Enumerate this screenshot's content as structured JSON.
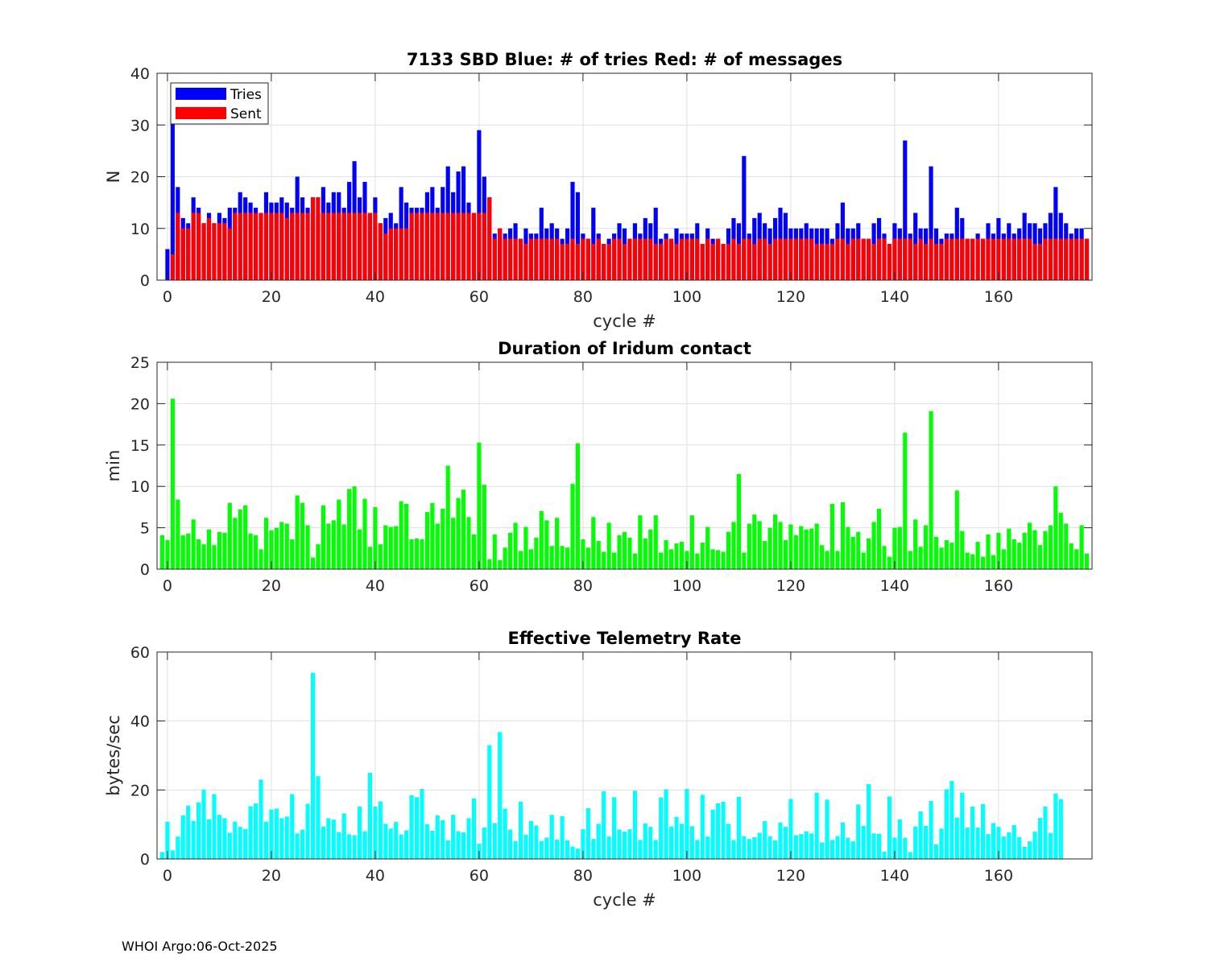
{
  "footer": "WHOI Argo:06-Oct-2025",
  "chart_data": [
    {
      "type": "bar",
      "title": "7133 SBD  Blue: # of tries   Red: # of messages",
      "xlabel": "cycle #",
      "ylabel": "N",
      "xlim": [
        -2,
        178
      ],
      "ylim": [
        0,
        40
      ],
      "xticks": [
        0,
        20,
        40,
        60,
        80,
        100,
        120,
        140,
        160
      ],
      "yticks": [
        0,
        10,
        20,
        30,
        40
      ],
      "grid": true,
      "legend": {
        "placement": "top-left",
        "entries": [
          {
            "label": "Tries",
            "color": "#0000ff"
          },
          {
            "label": "Sent",
            "color": "#ff0000"
          }
        ]
      },
      "x_start": 0,
      "series": [
        {
          "name": "Tries",
          "color": "#0000ff",
          "values": [
            6,
            32,
            18,
            12,
            11,
            16,
            14,
            11,
            13,
            11,
            13,
            12,
            14,
            14,
            17,
            16,
            15,
            14,
            13,
            17,
            15,
            15,
            16,
            15,
            14,
            20,
            16,
            14,
            16,
            16,
            18,
            15,
            17,
            17,
            14,
            19,
            23,
            16,
            19,
            13,
            16,
            11,
            12,
            13,
            11,
            18,
            15,
            14,
            14,
            14,
            17,
            18,
            14,
            18,
            22,
            17,
            21,
            22,
            15,
            13,
            29,
            20,
            16,
            9,
            10,
            9,
            10,
            11,
            8,
            10,
            9,
            9,
            14,
            10,
            11,
            10,
            8,
            10,
            19,
            17,
            9,
            8,
            14,
            9,
            7,
            8,
            9,
            11,
            10,
            8,
            11,
            9,
            12,
            11,
            14,
            8,
            9,
            8,
            10,
            9,
            9,
            9,
            11,
            7,
            10,
            8,
            8,
            7,
            10,
            12,
            11,
            24,
            9,
            12,
            13,
            11,
            10,
            12,
            14,
            13,
            10,
            10,
            10,
            11,
            10,
            10,
            10,
            10,
            8,
            11,
            15,
            10,
            10,
            11,
            8,
            8,
            11,
            12,
            9,
            7,
            11,
            10,
            27,
            9,
            13,
            10,
            10,
            22,
            10,
            8,
            9,
            9,
            14,
            12,
            8,
            8,
            9,
            8,
            11,
            9,
            12,
            9,
            11,
            9,
            10,
            13,
            11,
            11,
            10,
            11,
            13,
            18,
            13,
            11,
            9,
            10,
            10,
            8
          ]
        },
        {
          "name": "Sent",
          "color": "#ff0000",
          "values": [
            0,
            5,
            13,
            10,
            10,
            13,
            13,
            11,
            12,
            11,
            11,
            11,
            10,
            13,
            13,
            13,
            13,
            13,
            13,
            13,
            13,
            13,
            13,
            12,
            13,
            13,
            13,
            13,
            16,
            16,
            13,
            13,
            13,
            13,
            13,
            13,
            13,
            13,
            13,
            13,
            13,
            11,
            9,
            10,
            10,
            10,
            10,
            13,
            13,
            13,
            13,
            13,
            13,
            13,
            13,
            13,
            13,
            13,
            13,
            13,
            13,
            13,
            16,
            8,
            10,
            8,
            8,
            8,
            8,
            7,
            8,
            8,
            8,
            8,
            8,
            8,
            7,
            7,
            8,
            7,
            8,
            8,
            7,
            8,
            7,
            7,
            8,
            8,
            7,
            8,
            8,
            8,
            8,
            8,
            7,
            7,
            8,
            8,
            7,
            8,
            8,
            8,
            8,
            7,
            8,
            7,
            8,
            7,
            7,
            8,
            7,
            8,
            8,
            7,
            8,
            8,
            7,
            8,
            8,
            8,
            8,
            8,
            8,
            8,
            8,
            7,
            7,
            7,
            7,
            8,
            8,
            7,
            8,
            8,
            8,
            8,
            7,
            8,
            8,
            7,
            8,
            8,
            8,
            8,
            7,
            8,
            7,
            8,
            7,
            7,
            8,
            8,
            8,
            8,
            8,
            8,
            8,
            8,
            8,
            8,
            8,
            8,
            8,
            8,
            8,
            8,
            8,
            7,
            7,
            8,
            8,
            8,
            8,
            8,
            8,
            8,
            8,
            8
          ]
        }
      ]
    },
    {
      "type": "bar",
      "title": "Duration of Iridum contact",
      "xlabel": "",
      "ylabel": "min",
      "xlim": [
        -2,
        178
      ],
      "ylim": [
        0,
        25
      ],
      "xticks": [
        0,
        20,
        40,
        60,
        80,
        100,
        120,
        140,
        160
      ],
      "yticks": [
        0,
        5,
        10,
        15,
        20,
        25
      ],
      "grid": true,
      "x_start": -1,
      "series": [
        {
          "name": "Duration",
          "color": "#00ff00",
          "values": [
            4.1,
            3.5,
            20.6,
            8.4,
            4.1,
            4.3,
            6,
            3.6,
            3,
            4.8,
            2.9,
            4.5,
            4.4,
            8,
            6.2,
            7.2,
            7.7,
            4.3,
            4.1,
            2.4,
            6.2,
            4.7,
            5,
            5.7,
            5.5,
            3.6,
            8.9,
            8,
            5.3,
            1.4,
            3,
            7.7,
            5.5,
            5.9,
            8.4,
            5.4,
            9.7,
            10,
            4.8,
            8.5,
            2.7,
            7.5,
            3,
            5.3,
            5.1,
            5.2,
            8.2,
            7.9,
            3.6,
            3.7,
            3.6,
            6.9,
            8,
            5.5,
            7.3,
            12.5,
            6.2,
            8.6,
            9.6,
            6.3,
            4.2,
            15.3,
            10.2,
            1.2,
            4.2,
            1.1,
            2.6,
            4.4,
            5.6,
            2.2,
            5.1,
            2.4,
            3.8,
            7,
            5.9,
            2.8,
            6.2,
            2.8,
            2.6,
            10.3,
            15.2,
            3.6,
            2.6,
            6.3,
            3.4,
            2.1,
            5.6,
            2,
            4.1,
            4.5,
            3.8,
            1.9,
            6.5,
            3.7,
            4.8,
            6.5,
            2,
            3.5,
            2.4,
            3.1,
            3.3,
            2.2,
            6.5,
            1.9,
            3.2,
            5.1,
            2.4,
            2.3,
            2.1,
            4.5,
            5.7,
            11.5,
            2,
            5.5,
            6.6,
            5.8,
            3.4,
            5,
            6.6,
            5.7,
            3.5,
            5.4,
            4.1,
            5.2,
            4.8,
            4.9,
            5.5,
            2.9,
            2.2,
            7.9,
            2.2,
            8.1,
            5.1,
            3.9,
            4.5,
            2,
            3.7,
            5.7,
            7.3,
            2.8,
            1.5,
            5,
            5.1,
            16.5,
            2.2,
            6,
            2.7,
            5.3,
            19.1,
            3.9,
            2.6,
            3.5,
            3.2,
            9.5,
            4.6,
            2,
            1.8,
            3.3,
            1.5,
            4.2,
            1.7,
            4.4,
            2.4,
            4.9,
            3.6,
            3.2,
            4.4,
            5.6,
            4.7,
            2.9,
            4.6,
            5.3,
            10,
            6.8,
            5.5,
            3.1,
            2.4,
            5.3,
            1.9
          ]
        }
      ]
    },
    {
      "type": "bar",
      "title": "Effective Telemetry Rate",
      "xlabel": "cycle #",
      "ylabel": "bytes/sec",
      "xlim": [
        -2,
        178
      ],
      "ylim": [
        0,
        60
      ],
      "xticks": [
        0,
        20,
        40,
        60,
        80,
        100,
        120,
        140,
        160
      ],
      "yticks": [
        0,
        20,
        40,
        60
      ],
      "grid": true,
      "x_start": -1,
      "series": [
        {
          "name": "Rate",
          "color": "#00ffff",
          "values": [
            2,
            10.8,
            2.5,
            6.5,
            12.6,
            15.4,
            11,
            16.4,
            20.1,
            11.5,
            18.8,
            12.8,
            11.8,
            7.6,
            10.8,
            9.3,
            8.7,
            15.3,
            16.1,
            23,
            10.8,
            14.3,
            14.6,
            11.8,
            12.3,
            18.8,
            7.4,
            8.5,
            16,
            54,
            24,
            9.4,
            11.8,
            11.4,
            7.8,
            13.2,
            7.1,
            6.9,
            15.2,
            8,
            25,
            15.2,
            16.7,
            10.2,
            8.8,
            10.7,
            7.1,
            8.3,
            18.5,
            17.9,
            20.3,
            10.1,
            8.2,
            12.6,
            11.2,
            5.4,
            12.8,
            8,
            7.7,
            11.8,
            17.6,
            4.4,
            9.1,
            33,
            10.4,
            36.8,
            14.6,
            8.5,
            5.2,
            16.6,
            7,
            11,
            9.7,
            5.2,
            6.2,
            12.8,
            5.6,
            12.4,
            5.4,
            3.6,
            3,
            8.6,
            14.7,
            5.8,
            10.2,
            19.6,
            6.5,
            17.9,
            8.5,
            7.9,
            8.6,
            19.8,
            5.5,
            10.3,
            9.3,
            5.5,
            17.8,
            20.2,
            9.4,
            12.2,
            10.2,
            20.3,
            9.5,
            5.5,
            18.6,
            6.5,
            14.3,
            16.1,
            16.6,
            10.2,
            5.5,
            18,
            6.6,
            5.8,
            6.3,
            7.6,
            11,
            6.6,
            5.4,
            10.6,
            9.3,
            17.4,
            6.9,
            7.2,
            8,
            7.4,
            19.2,
            4.8,
            17.2,
            5.5,
            6.6,
            10.6,
            6.1,
            5.1,
            15.8,
            9.6,
            21.7,
            7.4,
            7.3,
            2.1,
            18.1,
            6.2,
            11.5,
            6.1,
            2,
            9.4,
            13.8,
            9.6,
            16.8,
            4.2,
            8.8,
            20.2,
            22.6,
            12,
            19.2,
            9.1,
            15.2,
            9.1,
            15.9,
            7.2,
            10.4,
            9.3,
            6.5,
            7.7,
            9.8,
            6.4,
            3.5,
            5.1,
            7.9,
            11.9,
            15.2,
            7.5,
            19,
            17.3
          ]
        }
      ]
    }
  ]
}
